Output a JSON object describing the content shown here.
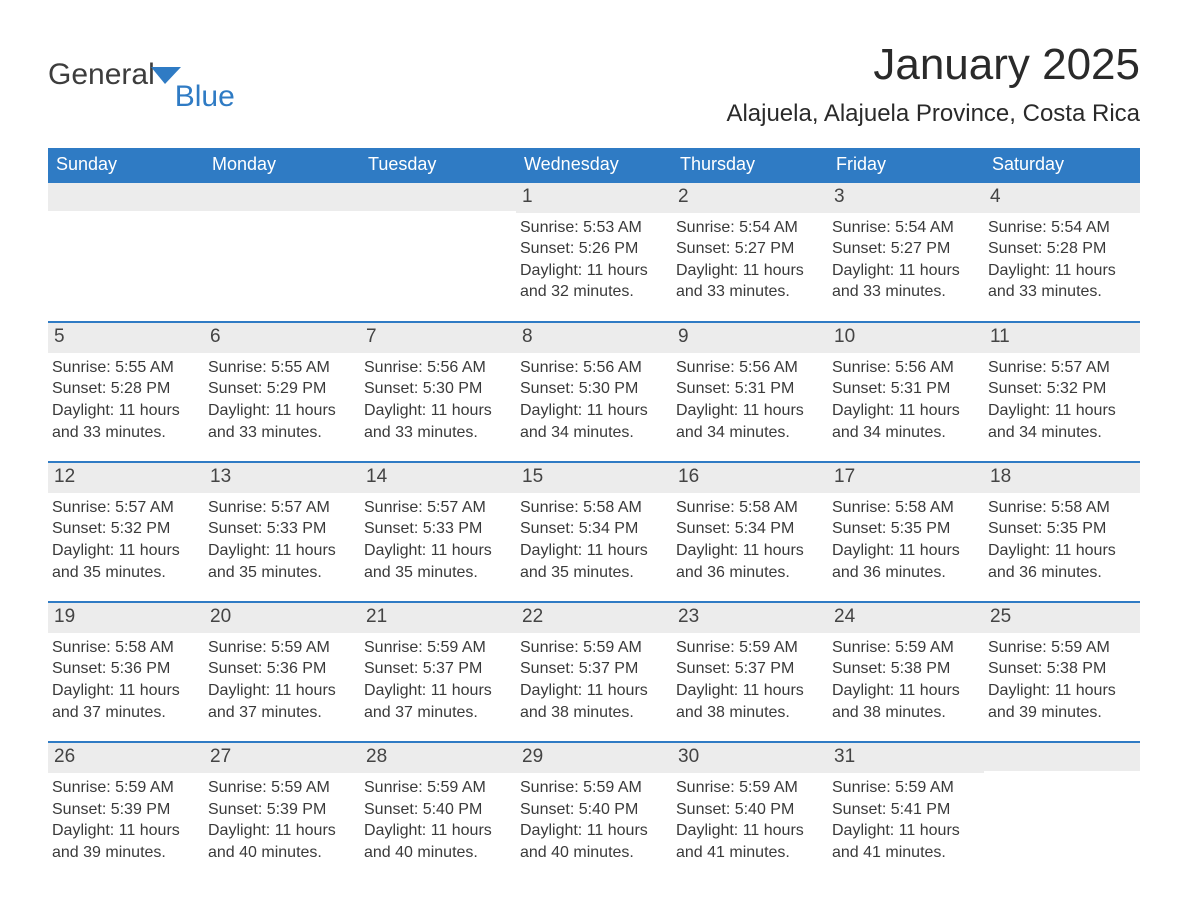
{
  "logo": {
    "word1": "General",
    "word2": "Blue",
    "flag_color": "#2f7bc4"
  },
  "title": "January 2025",
  "location": "Alajuela, Alajuela Province, Costa Rica",
  "colors": {
    "header_bg": "#2f7bc4",
    "header_text": "#ffffff",
    "daynum_bg": "#ececec",
    "rule": "#2f7bc4",
    "body_text": "#3a3a3a",
    "background": "#ffffff"
  },
  "typography": {
    "title_fontsize": 44,
    "location_fontsize": 24,
    "weekday_fontsize": 18,
    "daynum_fontsize": 19,
    "details_fontsize": 16
  },
  "calendar": {
    "type": "table",
    "columns": 7,
    "rows": 5,
    "weekdays": [
      "Sunday",
      "Monday",
      "Tuesday",
      "Wednesday",
      "Thursday",
      "Friday",
      "Saturday"
    ],
    "weeks": [
      [
        {
          "day": "",
          "sunrise": "",
          "sunset": "",
          "daylight": ""
        },
        {
          "day": "",
          "sunrise": "",
          "sunset": "",
          "daylight": ""
        },
        {
          "day": "",
          "sunrise": "",
          "sunset": "",
          "daylight": ""
        },
        {
          "day": "1",
          "sunrise": "Sunrise: 5:53 AM",
          "sunset": "Sunset: 5:26 PM",
          "daylight": "Daylight: 11 hours and 32 minutes."
        },
        {
          "day": "2",
          "sunrise": "Sunrise: 5:54 AM",
          "sunset": "Sunset: 5:27 PM",
          "daylight": "Daylight: 11 hours and 33 minutes."
        },
        {
          "day": "3",
          "sunrise": "Sunrise: 5:54 AM",
          "sunset": "Sunset: 5:27 PM",
          "daylight": "Daylight: 11 hours and 33 minutes."
        },
        {
          "day": "4",
          "sunrise": "Sunrise: 5:54 AM",
          "sunset": "Sunset: 5:28 PM",
          "daylight": "Daylight: 11 hours and 33 minutes."
        }
      ],
      [
        {
          "day": "5",
          "sunrise": "Sunrise: 5:55 AM",
          "sunset": "Sunset: 5:28 PM",
          "daylight": "Daylight: 11 hours and 33 minutes."
        },
        {
          "day": "6",
          "sunrise": "Sunrise: 5:55 AM",
          "sunset": "Sunset: 5:29 PM",
          "daylight": "Daylight: 11 hours and 33 minutes."
        },
        {
          "day": "7",
          "sunrise": "Sunrise: 5:56 AM",
          "sunset": "Sunset: 5:30 PM",
          "daylight": "Daylight: 11 hours and 33 minutes."
        },
        {
          "day": "8",
          "sunrise": "Sunrise: 5:56 AM",
          "sunset": "Sunset: 5:30 PM",
          "daylight": "Daylight: 11 hours and 34 minutes."
        },
        {
          "day": "9",
          "sunrise": "Sunrise: 5:56 AM",
          "sunset": "Sunset: 5:31 PM",
          "daylight": "Daylight: 11 hours and 34 minutes."
        },
        {
          "day": "10",
          "sunrise": "Sunrise: 5:56 AM",
          "sunset": "Sunset: 5:31 PM",
          "daylight": "Daylight: 11 hours and 34 minutes."
        },
        {
          "day": "11",
          "sunrise": "Sunrise: 5:57 AM",
          "sunset": "Sunset: 5:32 PM",
          "daylight": "Daylight: 11 hours and 34 minutes."
        }
      ],
      [
        {
          "day": "12",
          "sunrise": "Sunrise: 5:57 AM",
          "sunset": "Sunset: 5:32 PM",
          "daylight": "Daylight: 11 hours and 35 minutes."
        },
        {
          "day": "13",
          "sunrise": "Sunrise: 5:57 AM",
          "sunset": "Sunset: 5:33 PM",
          "daylight": "Daylight: 11 hours and 35 minutes."
        },
        {
          "day": "14",
          "sunrise": "Sunrise: 5:57 AM",
          "sunset": "Sunset: 5:33 PM",
          "daylight": "Daylight: 11 hours and 35 minutes."
        },
        {
          "day": "15",
          "sunrise": "Sunrise: 5:58 AM",
          "sunset": "Sunset: 5:34 PM",
          "daylight": "Daylight: 11 hours and 35 minutes."
        },
        {
          "day": "16",
          "sunrise": "Sunrise: 5:58 AM",
          "sunset": "Sunset: 5:34 PM",
          "daylight": "Daylight: 11 hours and 36 minutes."
        },
        {
          "day": "17",
          "sunrise": "Sunrise: 5:58 AM",
          "sunset": "Sunset: 5:35 PM",
          "daylight": "Daylight: 11 hours and 36 minutes."
        },
        {
          "day": "18",
          "sunrise": "Sunrise: 5:58 AM",
          "sunset": "Sunset: 5:35 PM",
          "daylight": "Daylight: 11 hours and 36 minutes."
        }
      ],
      [
        {
          "day": "19",
          "sunrise": "Sunrise: 5:58 AM",
          "sunset": "Sunset: 5:36 PM",
          "daylight": "Daylight: 11 hours and 37 minutes."
        },
        {
          "day": "20",
          "sunrise": "Sunrise: 5:59 AM",
          "sunset": "Sunset: 5:36 PM",
          "daylight": "Daylight: 11 hours and 37 minutes."
        },
        {
          "day": "21",
          "sunrise": "Sunrise: 5:59 AM",
          "sunset": "Sunset: 5:37 PM",
          "daylight": "Daylight: 11 hours and 37 minutes."
        },
        {
          "day": "22",
          "sunrise": "Sunrise: 5:59 AM",
          "sunset": "Sunset: 5:37 PM",
          "daylight": "Daylight: 11 hours and 38 minutes."
        },
        {
          "day": "23",
          "sunrise": "Sunrise: 5:59 AM",
          "sunset": "Sunset: 5:37 PM",
          "daylight": "Daylight: 11 hours and 38 minutes."
        },
        {
          "day": "24",
          "sunrise": "Sunrise: 5:59 AM",
          "sunset": "Sunset: 5:38 PM",
          "daylight": "Daylight: 11 hours and 38 minutes."
        },
        {
          "day": "25",
          "sunrise": "Sunrise: 5:59 AM",
          "sunset": "Sunset: 5:38 PM",
          "daylight": "Daylight: 11 hours and 39 minutes."
        }
      ],
      [
        {
          "day": "26",
          "sunrise": "Sunrise: 5:59 AM",
          "sunset": "Sunset: 5:39 PM",
          "daylight": "Daylight: 11 hours and 39 minutes."
        },
        {
          "day": "27",
          "sunrise": "Sunrise: 5:59 AM",
          "sunset": "Sunset: 5:39 PM",
          "daylight": "Daylight: 11 hours and 40 minutes."
        },
        {
          "day": "28",
          "sunrise": "Sunrise: 5:59 AM",
          "sunset": "Sunset: 5:40 PM",
          "daylight": "Daylight: 11 hours and 40 minutes."
        },
        {
          "day": "29",
          "sunrise": "Sunrise: 5:59 AM",
          "sunset": "Sunset: 5:40 PM",
          "daylight": "Daylight: 11 hours and 40 minutes."
        },
        {
          "day": "30",
          "sunrise": "Sunrise: 5:59 AM",
          "sunset": "Sunset: 5:40 PM",
          "daylight": "Daylight: 11 hours and 41 minutes."
        },
        {
          "day": "31",
          "sunrise": "Sunrise: 5:59 AM",
          "sunset": "Sunset: 5:41 PM",
          "daylight": "Daylight: 11 hours and 41 minutes."
        },
        {
          "day": "",
          "sunrise": "",
          "sunset": "",
          "daylight": ""
        }
      ]
    ]
  }
}
